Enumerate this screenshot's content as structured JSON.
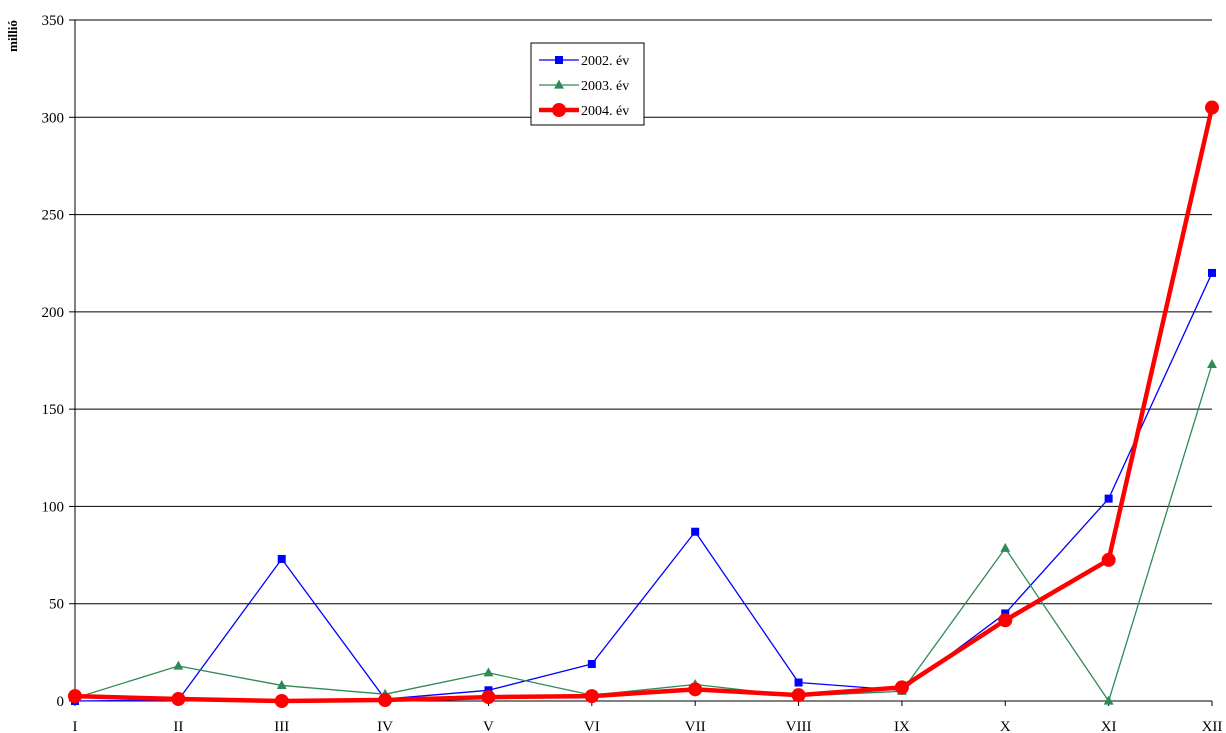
{
  "chart_data": {
    "type": "line",
    "title": "",
    "xlabel": "",
    "ylabel": "millió",
    "ylim": [
      0,
      350
    ],
    "yticks": [
      0,
      50,
      100,
      150,
      200,
      250,
      300,
      350
    ],
    "grid": "horizontal",
    "legend_position": "top-center",
    "categories": [
      "I",
      "II",
      "III",
      "IV",
      "V",
      "VI",
      "VII",
      "VIII",
      "IX",
      "X",
      "XI",
      "XII"
    ],
    "series": [
      {
        "name": "2002. év",
        "color": "#0000ff",
        "marker": "square",
        "values": [
          0,
          0.5,
          73,
          1,
          5.5,
          19,
          87,
          9.5,
          5.5,
          45,
          104,
          220
        ]
      },
      {
        "name": "2003. év",
        "color": "#2e8b57",
        "marker": "triangle",
        "values": [
          1.5,
          18,
          8,
          3.5,
          14.5,
          3,
          8.5,
          2.5,
          5,
          78.5,
          0,
          173
        ]
      },
      {
        "name": "2004. év",
        "color": "#ff0000",
        "marker": "circle",
        "values": [
          2.5,
          1,
          0,
          0.5,
          2,
          2.5,
          6,
          3,
          7,
          41.5,
          72.5,
          305
        ]
      }
    ]
  }
}
